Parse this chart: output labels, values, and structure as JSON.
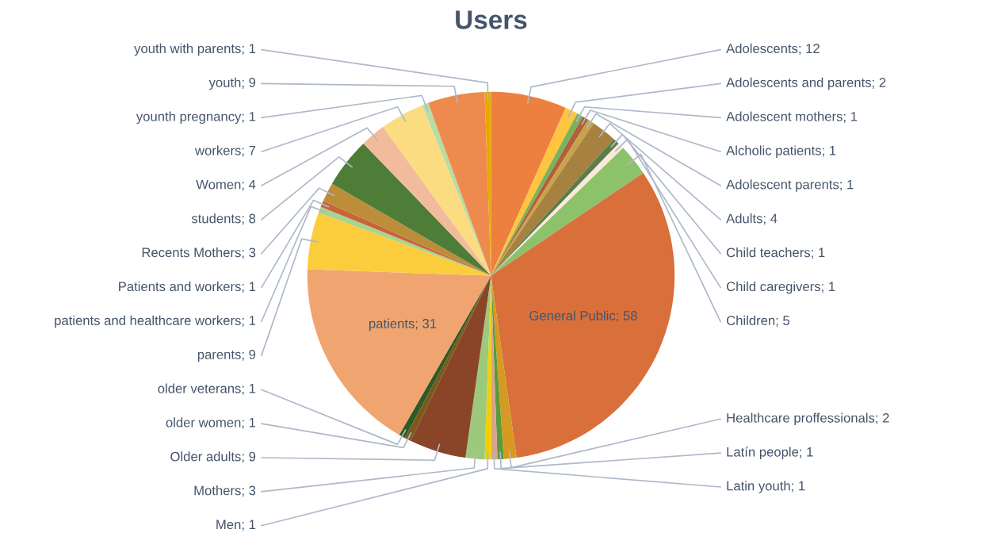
{
  "chart_data": {
    "type": "pie",
    "title": "Users",
    "categories": [
      "Adolescents; 12",
      "Adolescents and parents; 2",
      "Adolescent mothers; 1",
      "Alcholic patients; 1",
      "Adolescent parents; 1",
      "Adults; 4",
      "Child teachers; 1",
      "Child caregivers; 1",
      "Children; 5",
      "General Public; 58",
      "Healthcare proffessionals; 2",
      "Latín people; 1",
      "Latin youth; 1",
      "Men; 1",
      "Mothers; 3",
      "Older adults; 9",
      "older women; 1",
      "older veterans; 1",
      "patients; 31",
      "parents; 9",
      "patients and healthcare workers; 1",
      "Patients and workers; 1",
      "Recents Mothers; 3",
      "students; 8",
      "Women; 4",
      "workers; 7",
      "younth pregnancy; 1",
      "youth; 9",
      "youth with parents; 1"
    ],
    "values": [
      12,
      2,
      1,
      1,
      1,
      4,
      1,
      1,
      5,
      58,
      2,
      1,
      1,
      1,
      3,
      9,
      1,
      1,
      31,
      9,
      1,
      1,
      3,
      8,
      4,
      7,
      1,
      9,
      1
    ],
    "colors": [
      "#ee803f",
      "#ffc540",
      "#7bb35a",
      "#b0603a",
      "#c9a24a",
      "#a6813f",
      "#5a7d4a",
      "#fde9d9",
      "#8cc26a",
      "#d9703c",
      "#d49a22",
      "#5a9a3c",
      "#d9a38a",
      "#f2d000",
      "#9cc97c",
      "#8a4528",
      "#7a5a1c",
      "#2f5a24",
      "#f0a570",
      "#fbcd3c",
      "#a8d490",
      "#c8643a",
      "#bc8e3a",
      "#4e7d38",
      "#f2bc9c",
      "#fbdc80",
      "#b8dca4",
      "#ef8a4e",
      "#e8a800"
    ]
  }
}
